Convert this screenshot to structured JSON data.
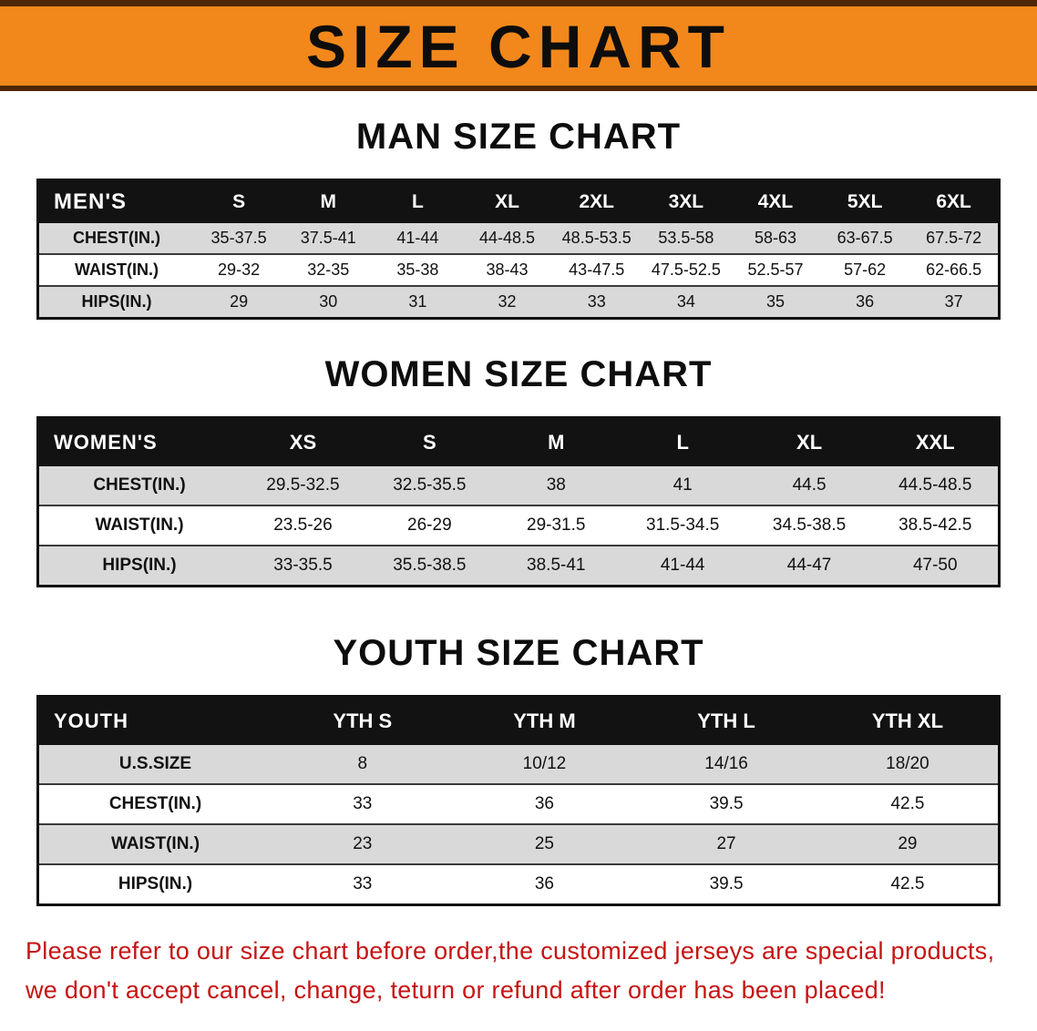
{
  "banner": {
    "title": "SIZE CHART"
  },
  "colors": {
    "banner_orange": "#F2881C",
    "banner_edge_brown": "#4F2608",
    "table_header_black": "#121212",
    "row_gray": "#D9D9D9",
    "disclaimer_red": "#C61414"
  },
  "sections": {
    "men": {
      "heading": "MAN SIZE CHART",
      "table": {
        "header": [
          "MEN'S",
          "S",
          "M",
          "L",
          "XL",
          "2XL",
          "3XL",
          "4XL",
          "5XL",
          "6XL"
        ],
        "rows": [
          [
            "CHEST(IN.)",
            "35-37.5",
            "37.5-41",
            "41-44",
            "44-48.5",
            "48.5-53.5",
            "53.5-58",
            "58-63",
            "63-67.5",
            "67.5-72"
          ],
          [
            "WAIST(IN.)",
            "29-32",
            "32-35",
            "35-38",
            "38-43",
            "43-47.5",
            "47.5-52.5",
            "52.5-57",
            "57-62",
            "62-66.5"
          ],
          [
            "HIPS(IN.)",
            "29",
            "30",
            "31",
            "32",
            "33",
            "34",
            "35",
            "36",
            "37"
          ]
        ]
      }
    },
    "women": {
      "heading": "WOMEN SIZE CHART",
      "table": {
        "header": [
          "WOMEN'S",
          "XS",
          "S",
          "M",
          "L",
          "XL",
          "XXL"
        ],
        "rows": [
          [
            "CHEST(IN.)",
            "29.5-32.5",
            "32.5-35.5",
            "38",
            "41",
            "44.5",
            "44.5-48.5"
          ],
          [
            "WAIST(IN.)",
            "23.5-26",
            "26-29",
            "29-31.5",
            "31.5-34.5",
            "34.5-38.5",
            "38.5-42.5"
          ],
          [
            "HIPS(IN.)",
            "33-35.5",
            "35.5-38.5",
            "38.5-41",
            "41-44",
            "44-47",
            "47-50"
          ]
        ]
      }
    },
    "youth": {
      "heading": "YOUTH SIZE CHART",
      "table": {
        "header": [
          "YOUTH",
          "YTH S",
          "YTH M",
          "YTH L",
          "YTH XL"
        ],
        "rows": [
          [
            "U.S.SIZE",
            "8",
            "10/12",
            "14/16",
            "18/20"
          ],
          [
            "CHEST(IN.)",
            "33",
            "36",
            "39.5",
            "42.5"
          ],
          [
            "WAIST(IN.)",
            "23",
            "25",
            "27",
            "29"
          ],
          [
            "HIPS(IN.)",
            "33",
            "36",
            "39.5",
            "42.5"
          ]
        ]
      }
    }
  },
  "disclaimer": {
    "line1": "Please refer to our size chart before order,the customized jerseys are special products,",
    "line2": "we don't accept cancel, change, teturn or refund after order has been placed!"
  }
}
